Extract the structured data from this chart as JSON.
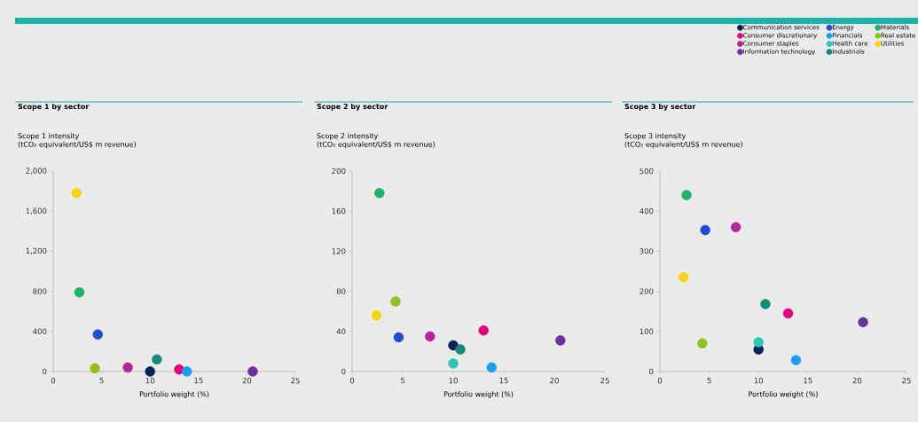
{
  "chart_data": [
    {
      "type": "scatter",
      "title": "Scope 1 by sector",
      "ylabel": "Scope 1 intensity",
      "subtitle": "(tCO₂ equivalent/US$ m revenue)",
      "xlabel": "Portfolio weight (%)",
      "grid": false,
      "xlim": [
        0,
        25
      ],
      "xticks": [
        0,
        5,
        10,
        15,
        20,
        25
      ],
      "ylim": [
        0,
        2000
      ],
      "yticks": [
        0,
        400,
        800,
        {
          "value": 1200,
          "label": "1,200"
        },
        {
          "value": 1600,
          "label": "1,600"
        },
        {
          "value": 2000,
          "label": "2,000"
        }
      ],
      "series": [
        {
          "color": "#0a1f5c",
          "x": [
            10.0
          ],
          "values": [
            0
          ]
        },
        {
          "color": "#e6007e",
          "x": [
            13.0
          ],
          "values": [
            20
          ]
        },
        {
          "color": "#b5249f",
          "x": [
            7.7
          ],
          "values": [
            40
          ]
        },
        {
          "color": "#6b2fa0",
          "x": [
            20.6
          ],
          "values": [
            0
          ]
        },
        {
          "color": "#1f4fd1",
          "x": [
            4.6
          ],
          "values": [
            370
          ]
        },
        {
          "color": "#1a9ff0",
          "x": [
            13.8
          ],
          "values": [
            0
          ]
        },
        {
          "color": "#138a7a",
          "x": [
            10.7
          ],
          "values": [
            120
          ]
        },
        {
          "color": "#1db36b",
          "x": [
            2.7
          ],
          "values": [
            790
          ]
        },
        {
          "color": "#8dc21f",
          "x": [
            4.3
          ],
          "values": [
            30
          ]
        },
        {
          "color": "#f5d410",
          "x": [
            2.4
          ],
          "values": [
            1780
          ]
        }
      ]
    },
    {
      "type": "scatter",
      "title": "Scope 2 by sector",
      "ylabel": "Scope 2 intensity",
      "subtitle": "(tCO₂ equivalent/US$ m revenue)",
      "xlabel": "Portfolio weight (%)",
      "grid": false,
      "xlim": [
        0,
        25
      ],
      "xticks": [
        0,
        5,
        10,
        15,
        20,
        25
      ],
      "ylim": [
        0,
        200
      ],
      "yticks": [
        0,
        40,
        80,
        120,
        160,
        200
      ],
      "series": [
        {
          "color": "#0a1f5c",
          "x": [
            10.0
          ],
          "values": [
            26
          ]
        },
        {
          "color": "#e6007e",
          "x": [
            13.0
          ],
          "values": [
            41
          ]
        },
        {
          "color": "#b5249f",
          "x": [
            7.7
          ],
          "values": [
            35
          ]
        },
        {
          "color": "#6b2fa0",
          "x": [
            20.6
          ],
          "values": [
            31
          ]
        },
        {
          "color": "#1f4fd1",
          "x": [
            4.6
          ],
          "values": [
            34
          ]
        },
        {
          "color": "#1a9ff0",
          "x": [
            13.8
          ],
          "values": [
            4
          ]
        },
        {
          "color": "#2ec4b6",
          "x": [
            10.0
          ],
          "values": [
            8
          ]
        },
        {
          "color": "#138a7a",
          "x": [
            10.7
          ],
          "values": [
            22
          ]
        },
        {
          "color": "#1db36b",
          "x": [
            2.7
          ],
          "values": [
            178
          ]
        },
        {
          "color": "#8dc21f",
          "x": [
            4.3
          ],
          "values": [
            70
          ]
        },
        {
          "color": "#f5d410",
          "x": [
            2.4
          ],
          "values": [
            56
          ]
        }
      ]
    },
    {
      "type": "scatter",
      "title": "Scope 3 by sector",
      "ylabel": "Scope 3 intensity",
      "subtitle": "(tCO₂ equivalent/US$ m revenue)",
      "xlabel": "Portfolio weight (%)",
      "grid": false,
      "legend": "top right",
      "xlim": [
        0,
        25
      ],
      "xticks": [
        0,
        5,
        10,
        15,
        20,
        25
      ],
      "ylim": [
        0,
        500
      ],
      "yticks": [
        0,
        100,
        200,
        300,
        400,
        500
      ],
      "series": [
        {
          "name": "Communication services",
          "color": "#0a1f5c",
          "x": [
            10.0
          ],
          "values": [
            55
          ]
        },
        {
          "name": "Consumer discretionary",
          "color": "#e6007e",
          "x": [
            13.0
          ],
          "values": [
            145
          ]
        },
        {
          "name": "Consumer staples",
          "color": "#b5249f",
          "x": [
            7.7
          ],
          "values": [
            360
          ]
        },
        {
          "name": "Information technology",
          "color": "#6b2fa0",
          "x": [
            20.6
          ],
          "values": [
            123
          ]
        },
        {
          "name": "Energy",
          "color": "#1f4fd1",
          "x": [
            4.6
          ],
          "values": [
            353
          ]
        },
        {
          "name": "Financials",
          "color": "#1a9ff0",
          "x": [
            13.8
          ],
          "values": [
            28
          ]
        },
        {
          "name": "Health care",
          "color": "#2ec4b6",
          "x": [
            10.0
          ],
          "values": [
            73
          ]
        },
        {
          "name": "Industrials",
          "color": "#138a7a",
          "x": [
            10.7
          ],
          "values": [
            168
          ]
        },
        {
          "name": "Materials",
          "color": "#1db36b",
          "x": [
            2.7
          ],
          "values": [
            440
          ]
        },
        {
          "name": "Real estate",
          "color": "#8dc21f",
          "x": [
            4.3
          ],
          "values": [
            70
          ]
        },
        {
          "name": "Utilities",
          "color": "#f5d410",
          "x": [
            2.4
          ],
          "values": [
            235
          ]
        }
      ]
    }
  ]
}
